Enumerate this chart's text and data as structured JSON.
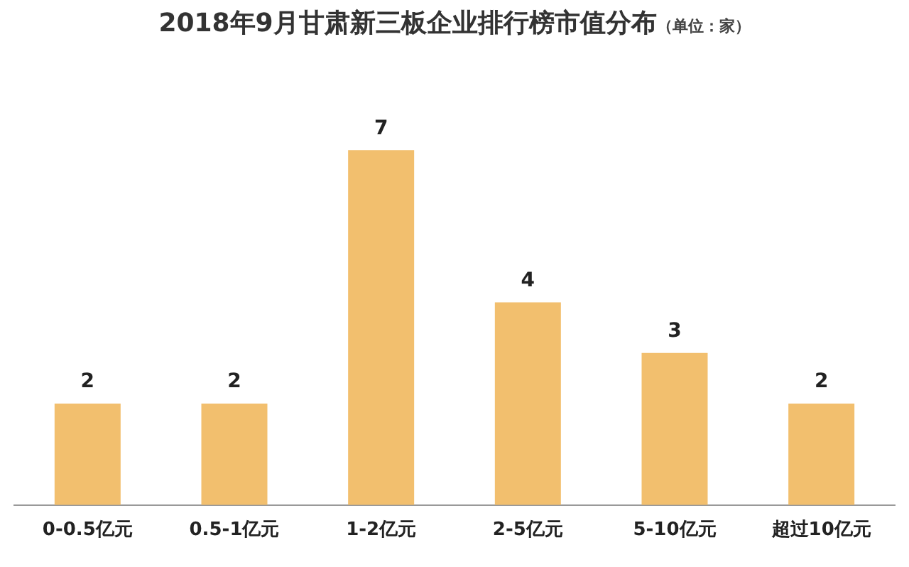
{
  "chart_data": {
    "type": "bar",
    "title": "2018年9月甘肃新三板企业排行榜市值分布",
    "subtitle": "（单位：家）",
    "categories": [
      "0-0.5亿元",
      "0.5-1亿元",
      "1-2亿元",
      "2-5亿元",
      "5-10亿元",
      "超过10亿元"
    ],
    "values": [
      2,
      2,
      7,
      4,
      3,
      2
    ],
    "color": "#f2bf6e",
    "data_labels": true,
    "grid": false,
    "legend": false
  }
}
